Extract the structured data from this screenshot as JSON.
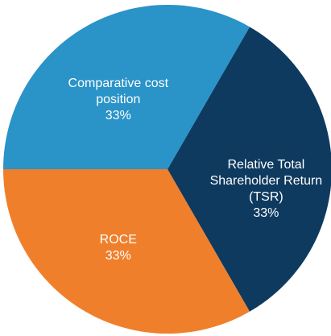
{
  "chart_data": {
    "type": "pie",
    "categories": [
      "Relative Total Shareholder Return (TSR)",
      "ROCE",
      "Comparative cost position"
    ],
    "values": [
      33,
      33,
      33
    ],
    "value_labels": [
      "33%",
      "33%",
      "33%"
    ],
    "colors": [
      "#0e3a5f",
      "#f07f2b",
      "#2a93c8"
    ]
  }
}
